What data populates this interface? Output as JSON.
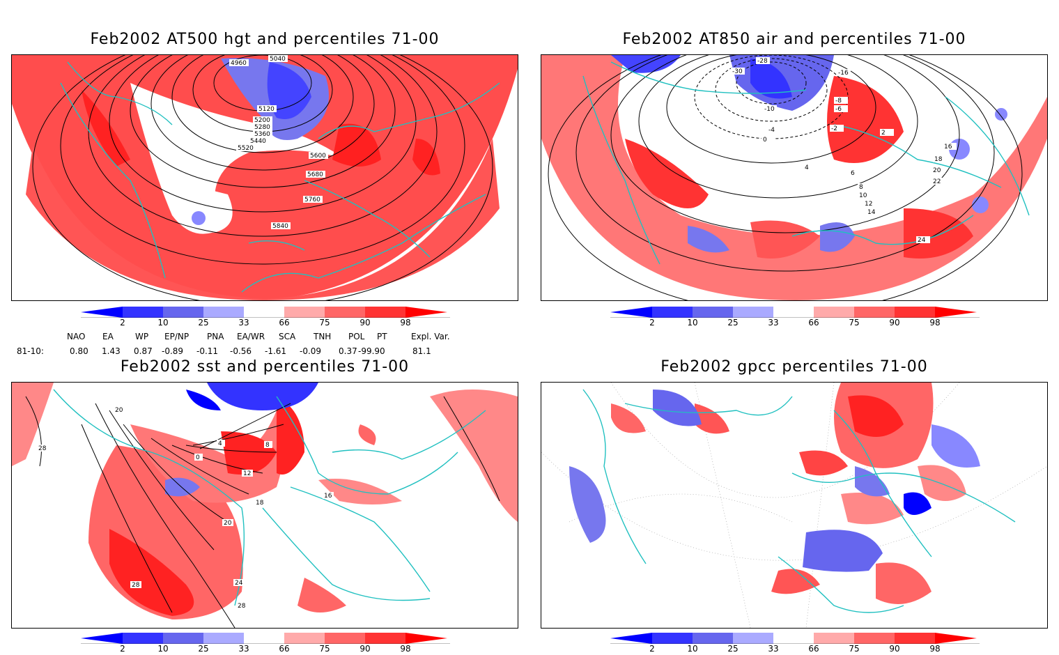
{
  "panels": {
    "p1": {
      "title": "Feb2002 AT500 hgt and percentiles 71-00",
      "contour_labels": [
        "5040",
        "4960",
        "5120",
        "5200",
        "5280",
        "5360",
        "5440",
        "5520",
        "5600",
        "5680",
        "5760",
        "5840"
      ]
    },
    "p2": {
      "title": "Feb2002 AT850 air and percentiles 71-00",
      "contour_labels": [
        "-28",
        "-30",
        "-16",
        "-10",
        "-8",
        "-6",
        "-4",
        "-2",
        "0",
        "2",
        "4",
        "6",
        "8",
        "10",
        "12",
        "14",
        "16",
        "18",
        "20",
        "22",
        "24"
      ]
    },
    "p3": {
      "title": "Feb2002 sst and percentiles 71-00",
      "contour_labels": [
        "28",
        "20",
        "0",
        "4",
        "8",
        "12",
        "16",
        "18",
        "20",
        "24",
        "28",
        "28"
      ]
    },
    "p4": {
      "title": "Feb2002 gpcc percentiles 71-00"
    }
  },
  "colorbar": {
    "ticks": [
      "2",
      "10",
      "25",
      "33",
      "66",
      "75",
      "90",
      "98"
    ],
    "colors": {
      "lt2": "#0000ff",
      "b2_10": "#3333ff",
      "b10_25": "#6666ee",
      "b25_33": "#aaaaff",
      "b33_66": "#ffffff",
      "b66_75": "#ffaaaa",
      "b75_90": "#ff6666",
      "b90_98": "#ff3333",
      "gt98": "#ff0000"
    }
  },
  "indices": {
    "header": [
      "NAO",
      "EA",
      "WP",
      "EP/NP",
      "PNA",
      "EA/WR",
      "SCA",
      "TNH",
      "POL",
      "PT",
      "Expl. Var."
    ],
    "row_label": "81-10:",
    "values": [
      "0.80",
      "1.43",
      "0.87",
      "-0.89",
      "-0.11",
      "-0.56",
      "-1.61",
      "-0.09",
      "0.37",
      "-99.90",
      "81.1"
    ]
  },
  "map_style": {
    "coast_color": "#20c0c0",
    "contour_color": "#000000",
    "grid_color": "#999999"
  }
}
